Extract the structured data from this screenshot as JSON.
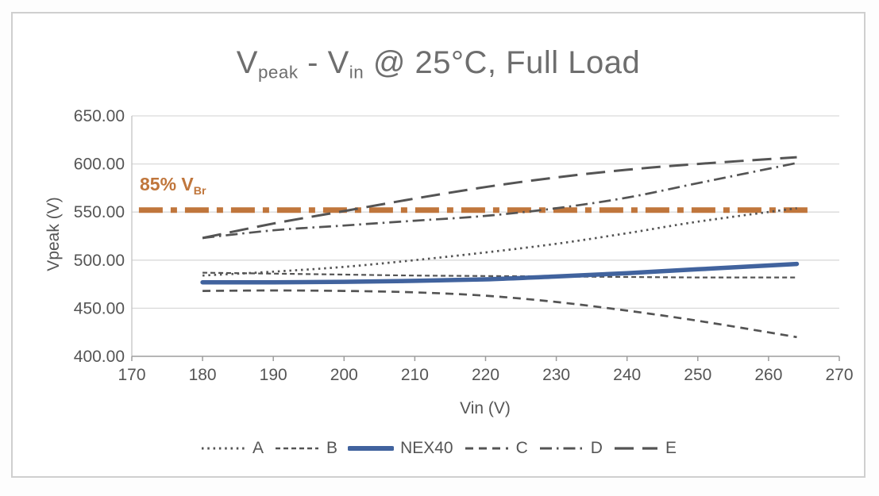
{
  "chart_data": {
    "type": "line",
    "title_text": "Vpeak - Vin @ 25°C, Full Load",
    "title_parts": [
      {
        "t": "V"
      },
      {
        "s": "peak"
      },
      {
        "t": " - V"
      },
      {
        "s": "in"
      },
      {
        "t": " @ 25°C, Full Load"
      }
    ],
    "xlabel": "Vin (V)",
    "ylabel": "Vpeak (V)",
    "xlim": [
      170,
      270
    ],
    "ylim": [
      400,
      650
    ],
    "grid": true,
    "legend_position": "bottom",
    "x_ticks": [
      170,
      180,
      190,
      200,
      210,
      220,
      230,
      240,
      250,
      260,
      270
    ],
    "y_ticks": [
      {
        "v": 650,
        "label": "650.00"
      },
      {
        "v": 600,
        "label": "600.00"
      },
      {
        "v": 550,
        "label": "550.00"
      },
      {
        "v": 500,
        "label": "500.00"
      },
      {
        "v": 450,
        "label": "450.00"
      },
      {
        "v": 400,
        "label": "400.00"
      }
    ],
    "x": [
      180,
      190,
      200,
      210,
      220,
      230,
      240,
      250,
      264
    ],
    "series": [
      {
        "name": "A",
        "style": "dotted",
        "color": "#545454",
        "values": [
          484,
          488,
          493,
          500,
          508,
          517,
          528,
          540,
          554
        ]
      },
      {
        "name": "B",
        "style": "fine-dash",
        "color": "#545454",
        "values": [
          487,
          486,
          485,
          484,
          483.5,
          483,
          482.5,
          482,
          482
        ]
      },
      {
        "name": "NEX40",
        "style": "solid",
        "color": "#41639e",
        "values": [
          477,
          477,
          477.5,
          478.5,
          480,
          483,
          486.5,
          490.5,
          496
        ]
      },
      {
        "name": "C",
        "style": "dash",
        "color": "#545454",
        "values": [
          468,
          468.5,
          468,
          466.5,
          463,
          456.5,
          447.5,
          437,
          420
        ]
      },
      {
        "name": "D",
        "style": "dash-dot",
        "color": "#545454",
        "values": [
          523,
          531,
          536,
          541,
          546,
          554,
          565,
          580,
          601
        ]
      },
      {
        "name": "E",
        "style": "long-dash",
        "color": "#545454",
        "values": [
          523,
          538,
          551,
          564,
          576,
          586,
          594,
          600,
          607
        ]
      }
    ],
    "reference_line": {
      "label_text": "85% VBr",
      "label_parts": [
        {
          "t": "85% V"
        },
        {
          "s": "Br"
        }
      ],
      "value": 552,
      "x_start": 171,
      "x_end": 265.5,
      "color": "#c0763c",
      "style": "thick-dash-dot"
    },
    "colors": {
      "accent_blue": "#41639e",
      "accent_orange": "#c0763c",
      "text_gray": "#555555",
      "gridline": "#d9d9d9",
      "axis_line": "#9d9d9d"
    }
  }
}
